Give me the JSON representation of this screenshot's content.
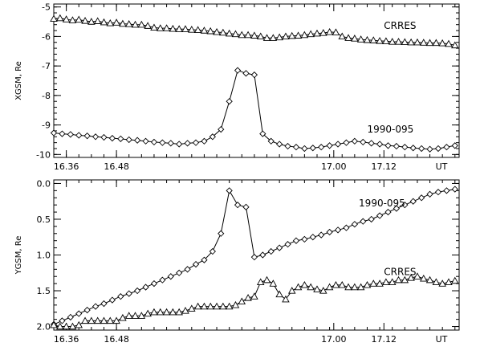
{
  "chart_data": [
    {
      "type": "line",
      "ylabel": "XGSM, Re",
      "ylim": [
        -10.1,
        -4.9
      ],
      "y_reversed": false,
      "y_ticks": [
        -10,
        -9,
        -8,
        -7,
        -6,
        -5
      ],
      "y_tick_labels": [
        "-10",
        "-9",
        "-8",
        "-7",
        "-6",
        "-5"
      ],
      "xlim": [
        16.33,
        17.3
      ],
      "x_ticks": [
        16.36,
        16.48,
        17.0,
        17.12
      ],
      "x_tick_labels": [
        "16.36",
        "16.48",
        "17.00",
        "17.12"
      ],
      "x_unit_label": "UT",
      "series": [
        {
          "name": "CRRES",
          "marker": "triangle",
          "x": [
            16.33,
            16.345,
            16.36,
            16.375,
            16.39,
            16.405,
            16.42,
            16.435,
            16.45,
            16.465,
            16.48,
            16.495,
            16.51,
            16.525,
            16.54,
            16.555,
            16.57,
            16.585,
            16.6,
            16.615,
            16.63,
            16.645,
            16.66,
            16.675,
            16.69,
            16.705,
            16.72,
            16.735,
            16.75,
            16.765,
            16.78,
            16.795,
            16.81,
            16.825,
            16.84,
            16.855,
            16.87,
            16.885,
            16.9,
            16.915,
            16.93,
            16.945,
            16.96,
            16.975,
            16.99,
            17.005,
            17.02,
            17.035,
            17.05,
            17.065,
            17.08,
            17.095,
            17.11,
            17.125,
            17.14,
            17.155,
            17.17,
            17.185,
            17.2,
            17.215,
            17.23,
            17.245,
            17.26,
            17.275,
            17.29
          ],
          "values": [
            -5.4,
            -5.38,
            -5.42,
            -5.45,
            -5.43,
            -5.47,
            -5.5,
            -5.48,
            -5.52,
            -5.55,
            -5.53,
            -5.57,
            -5.58,
            -5.6,
            -5.6,
            -5.64,
            -5.7,
            -5.72,
            -5.72,
            -5.74,
            -5.75,
            -5.75,
            -5.77,
            -5.78,
            -5.8,
            -5.82,
            -5.85,
            -5.87,
            -5.9,
            -5.92,
            -5.95,
            -5.95,
            -5.97,
            -6.0,
            -6.05,
            -6.05,
            -6.03,
            -6.0,
            -5.98,
            -5.97,
            -5.95,
            -5.92,
            -5.9,
            -5.88,
            -5.85,
            -5.86,
            -6.0,
            -6.05,
            -6.07,
            -6.1,
            -6.12,
            -6.13,
            -6.15,
            -6.16,
            -6.18,
            -6.18,
            -6.19,
            -6.2,
            -6.2,
            -6.21,
            -6.22,
            -6.22,
            -6.23,
            -6.25,
            -6.3
          ]
        },
        {
          "name": "1990-095",
          "marker": "diamond",
          "x": [
            16.33,
            16.35,
            16.37,
            16.39,
            16.41,
            16.43,
            16.45,
            16.47,
            16.49,
            16.51,
            16.53,
            16.55,
            16.57,
            16.59,
            16.61,
            16.63,
            16.65,
            16.67,
            16.69,
            16.71,
            16.73,
            16.75,
            16.77,
            16.79,
            16.81,
            16.83,
            16.85,
            16.87,
            16.89,
            16.91,
            16.93,
            16.95,
            16.97,
            16.99,
            17.01,
            17.03,
            17.05,
            17.07,
            17.09,
            17.11,
            17.13,
            17.15,
            17.17,
            17.19,
            17.21,
            17.23,
            17.25,
            17.27,
            17.29
          ],
          "values": [
            -9.27,
            -9.3,
            -9.32,
            -9.35,
            -9.37,
            -9.4,
            -9.42,
            -9.45,
            -9.47,
            -9.5,
            -9.52,
            -9.55,
            -9.58,
            -9.6,
            -9.62,
            -9.65,
            -9.62,
            -9.6,
            -9.55,
            -9.4,
            -9.15,
            -8.2,
            -7.15,
            -7.25,
            -7.3,
            -9.3,
            -9.55,
            -9.65,
            -9.72,
            -9.75,
            -9.8,
            -9.78,
            -9.75,
            -9.7,
            -9.65,
            -9.6,
            -9.55,
            -9.58,
            -9.62,
            -9.65,
            -9.7,
            -9.72,
            -9.75,
            -9.78,
            -9.8,
            -9.82,
            -9.8,
            -9.75,
            -9.7
          ]
        }
      ],
      "annotations": [
        {
          "text": "CRRES",
          "x": 17.12,
          "y": -5.75
        },
        {
          "text": "1990-095",
          "x": 17.08,
          "y": -9.25
        }
      ]
    },
    {
      "type": "line",
      "ylabel": "YGSM, Re",
      "ylim": [
        2.05,
        -0.05
      ],
      "y_reversed": true,
      "y_ticks": [
        0.0,
        0.5,
        1.0,
        1.5,
        2.0
      ],
      "y_tick_labels": [
        "0.0",
        "0.5",
        "1.0",
        "1.5",
        "2.0"
      ],
      "xlim": [
        16.33,
        17.3
      ],
      "x_ticks": [
        16.36,
        16.48,
        17.0,
        17.12
      ],
      "x_tick_labels": [
        "16.36",
        "16.48",
        "17.00",
        "17.12"
      ],
      "x_unit_label": "UT",
      "series": [
        {
          "name": "1990-095",
          "marker": "diamond",
          "x": [
            16.33,
            16.35,
            16.37,
            16.39,
            16.41,
            16.43,
            16.45,
            16.47,
            16.49,
            16.51,
            16.53,
            16.55,
            16.57,
            16.59,
            16.61,
            16.63,
            16.65,
            16.67,
            16.69,
            16.71,
            16.73,
            16.75,
            16.77,
            16.79,
            16.81,
            16.83,
            16.85,
            16.87,
            16.89,
            16.91,
            16.93,
            16.95,
            16.97,
            16.99,
            17.01,
            17.03,
            17.05,
            17.07,
            17.09,
            17.11,
            17.13,
            17.15,
            17.17,
            17.19,
            17.21,
            17.23,
            17.25,
            17.27,
            17.29
          ],
          "values": [
            1.97,
            1.92,
            1.87,
            1.82,
            1.77,
            1.72,
            1.68,
            1.63,
            1.58,
            1.54,
            1.5,
            1.45,
            1.4,
            1.35,
            1.3,
            1.25,
            1.2,
            1.13,
            1.07,
            0.95,
            0.7,
            0.1,
            0.3,
            0.33,
            1.03,
            1.0,
            0.95,
            0.9,
            0.85,
            0.8,
            0.78,
            0.75,
            0.72,
            0.68,
            0.65,
            0.62,
            0.57,
            0.53,
            0.5,
            0.45,
            0.4,
            0.35,
            0.3,
            0.25,
            0.2,
            0.15,
            0.12,
            0.1,
            0.08
          ]
        },
        {
          "name": "CRRES",
          "marker": "triangle",
          "x": [
            16.33,
            16.345,
            16.36,
            16.375,
            16.39,
            16.405,
            16.42,
            16.435,
            16.45,
            16.465,
            16.48,
            16.495,
            16.51,
            16.525,
            16.54,
            16.555,
            16.57,
            16.585,
            16.6,
            16.615,
            16.63,
            16.645,
            16.66,
            16.675,
            16.69,
            16.705,
            16.72,
            16.735,
            16.75,
            16.765,
            16.78,
            16.795,
            16.81,
            16.825,
            16.84,
            16.855,
            16.87,
            16.885,
            16.9,
            16.915,
            16.93,
            16.945,
            16.96,
            16.975,
            16.99,
            17.005,
            17.02,
            17.035,
            17.05,
            17.065,
            17.08,
            17.095,
            17.11,
            17.125,
            17.14,
            17.155,
            17.17,
            17.185,
            17.2,
            17.215,
            17.23,
            17.245,
            17.26,
            17.275,
            17.29
          ],
          "values": [
            1.98,
            2.0,
            2.0,
            2.0,
            1.98,
            1.92,
            1.92,
            1.92,
            1.92,
            1.92,
            1.92,
            1.88,
            1.85,
            1.85,
            1.85,
            1.82,
            1.8,
            1.8,
            1.8,
            1.8,
            1.8,
            1.78,
            1.75,
            1.72,
            1.72,
            1.72,
            1.72,
            1.72,
            1.72,
            1.7,
            1.65,
            1.6,
            1.58,
            1.38,
            1.35,
            1.4,
            1.55,
            1.62,
            1.5,
            1.45,
            1.42,
            1.45,
            1.48,
            1.5,
            1.45,
            1.42,
            1.42,
            1.45,
            1.45,
            1.45,
            1.42,
            1.4,
            1.4,
            1.38,
            1.38,
            1.35,
            1.35,
            1.32,
            1.3,
            1.33,
            1.35,
            1.38,
            1.4,
            1.38,
            1.36
          ]
        }
      ],
      "annotations": [
        {
          "text": "1990-095",
          "x": 17.06,
          "y": 0.32
        },
        {
          "text": "CRRES",
          "x": 17.12,
          "y": 1.28
        }
      ]
    }
  ]
}
